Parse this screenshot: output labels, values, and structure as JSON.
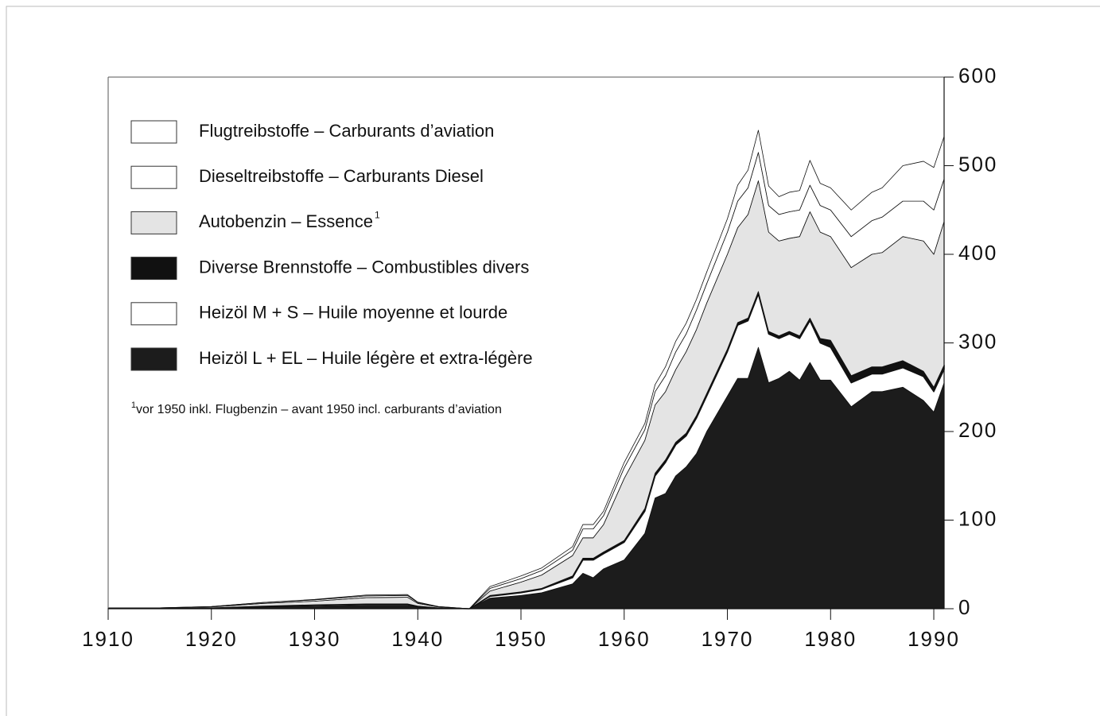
{
  "chart_data": {
    "type": "stacked-area",
    "x": [
      1910,
      1915,
      1920,
      1925,
      1930,
      1935,
      1939,
      1940,
      1942,
      1945,
      1947,
      1950,
      1952,
      1955,
      1956,
      1957,
      1958,
      1960,
      1962,
      1963,
      1964,
      1965,
      1966,
      1967,
      1968,
      1970,
      1971,
      1972,
      1973,
      1974,
      1975,
      1976,
      1977,
      1978,
      1979,
      1980,
      1982,
      1984,
      1985,
      1987,
      1989,
      1990,
      1991
    ],
    "series": [
      {
        "name": "Heizöl L + EL – Huile légère et extra-légère",
        "color": "#1c1c1c",
        "values": [
          0.5,
          0.5,
          1,
          2,
          3,
          4,
          4,
          2,
          1,
          0,
          12,
          15,
          18,
          28,
          40,
          35,
          45,
          55,
          85,
          125,
          130,
          150,
          160,
          175,
          200,
          240,
          260,
          260,
          295,
          255,
          260,
          268,
          258,
          278,
          258,
          258,
          228,
          245,
          245,
          250,
          235,
          222,
          255
        ]
      },
      {
        "name": "Heizöl M + S – Huile moyenne et lourde",
        "color": "#ffffff",
        "values": [
          0,
          0,
          0,
          0.5,
          1,
          1,
          1,
          0.5,
          0,
          0,
          2,
          3,
          4,
          7,
          15,
          20,
          17,
          20,
          25,
          25,
          35,
          35,
          35,
          40,
          40,
          50,
          60,
          65,
          60,
          55,
          45,
          42,
          47,
          47,
          42,
          37,
          27,
          20,
          20,
          22,
          27,
          23,
          15
        ]
      },
      {
        "name": "Diverse Brennstoffe – Combustibles divers",
        "color": "#111111",
        "values": [
          0,
          0,
          0,
          0.5,
          0.5,
          0.5,
          0.5,
          0.5,
          0,
          0,
          1,
          1,
          1,
          2,
          2,
          2,
          2,
          2,
          3,
          3,
          3,
          3,
          3,
          3,
          3,
          3,
          3,
          3,
          3,
          3,
          3,
          3,
          3,
          3,
          5,
          8,
          8,
          8,
          8,
          8,
          6,
          5,
          5
        ]
      },
      {
        "name": "Autobenzin – Essence",
        "color": "#e4e4e4",
        "values": [
          0.5,
          0.5,
          1,
          3,
          4,
          7,
          7.5,
          3,
          1,
          0,
          5,
          11,
          15,
          23,
          23,
          23,
          31,
          70,
          77,
          77,
          77,
          82,
          92,
          97,
          102,
          107,
          107,
          117,
          125,
          112,
          107,
          105,
          112,
          120,
          120,
          117,
          122,
          127,
          129,
          140,
          147,
          150,
          162
        ]
      },
      {
        "name": "Dieseltreibstoffe – Carburants Diesel",
        "color": "#ffffff",
        "values": [
          0,
          0,
          0.5,
          1,
          1.5,
          2,
          2,
          1,
          0.5,
          0,
          3,
          4,
          5,
          6,
          10,
          10,
          10,
          12,
          12,
          15,
          18,
          20,
          20,
          22,
          22,
          25,
          30,
          30,
          32,
          30,
          30,
          30,
          30,
          30,
          30,
          30,
          35,
          38,
          40,
          40,
          45,
          50,
          48
        ]
      },
      {
        "name": "Flugtreibstoffe – Carburants d’aviation",
        "color": "#ffffff",
        "values": [
          0,
          0,
          0,
          0,
          0.5,
          1,
          1,
          0.5,
          0,
          0,
          2,
          3,
          3,
          4,
          5,
          5,
          5,
          6,
          7,
          8,
          10,
          12,
          12,
          12,
          13,
          15,
          18,
          20,
          25,
          22,
          20,
          22,
          22,
          28,
          25,
          25,
          30,
          32,
          33,
          40,
          45,
          48,
          48
        ]
      }
    ],
    "xlim": [
      1910,
      1991
    ],
    "xticks": [
      1910,
      1920,
      1930,
      1940,
      1950,
      1960,
      1970,
      1980,
      1990
    ],
    "ylim": [
      0,
      600
    ],
    "yticks": [
      0,
      100,
      200,
      300,
      400,
      500,
      600
    ],
    "footnote": {
      "marker": "1",
      "text": "vor 1950 inkl. Flugbenzin – avant 1950 incl. carburants d’aviation"
    }
  }
}
